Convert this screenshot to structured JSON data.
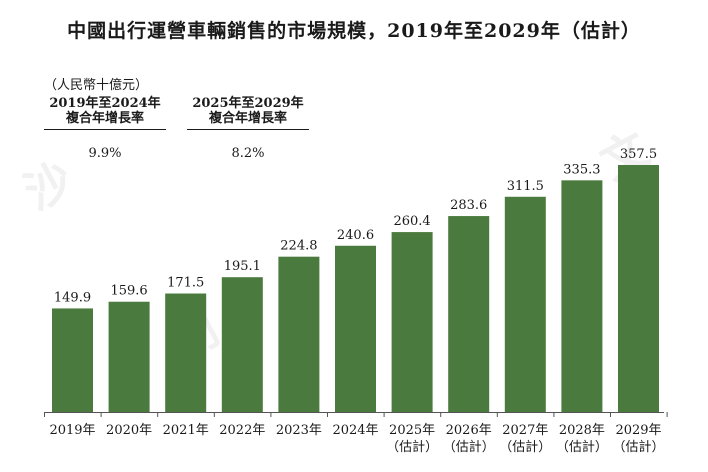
{
  "title": "中國出行運營車輛銷售的市場規模，2019年至2029年（估計）",
  "unit": "（人民幣十億元）",
  "cagr": [
    {
      "line1": "2019年至2024年",
      "line2": "複合年增長率",
      "value": "9.9%"
    },
    {
      "line1": "2025年至2029年",
      "line2": "複合年增長率",
      "value": "8.2%"
    }
  ],
  "watermark": [
    "沙",
    "利",
    "文"
  ],
  "chart_data": {
    "type": "bar",
    "categories": [
      {
        "year": "2019年",
        "note": ""
      },
      {
        "year": "2020年",
        "note": ""
      },
      {
        "year": "2021年",
        "note": ""
      },
      {
        "year": "2022年",
        "note": ""
      },
      {
        "year": "2023年",
        "note": ""
      },
      {
        "year": "2024年",
        "note": ""
      },
      {
        "year": "2025年",
        "note": "（估計）"
      },
      {
        "year": "2026年",
        "note": "（估計）"
      },
      {
        "year": "2027年",
        "note": "（估計）"
      },
      {
        "year": "2028年",
        "note": "（估計）"
      },
      {
        "year": "2029年",
        "note": "（估計）"
      }
    ],
    "values": [
      149.9,
      159.6,
      171.5,
      195.1,
      224.8,
      240.6,
      260.4,
      283.6,
      311.5,
      335.3,
      357.5
    ],
    "value_labels": [
      "149.9",
      "159.6",
      "171.5",
      "195.1",
      "224.8",
      "240.6",
      "260.4",
      "283.6",
      "311.5",
      "335.3",
      "357.5"
    ],
    "ylim": [
      0,
      357.5
    ],
    "bar_color": "#4a7a3d",
    "grid": false,
    "legend": "none"
  }
}
